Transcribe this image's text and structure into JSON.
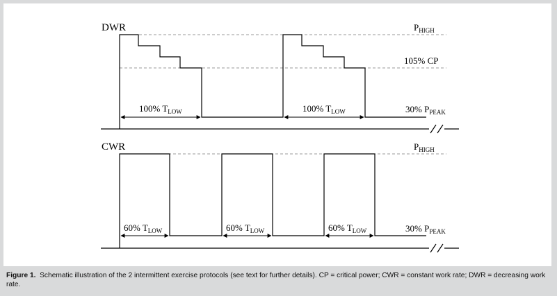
{
  "diagram": {
    "top_panel": {
      "protocol_label": "DWR",
      "high_label": {
        "main": "P",
        "sub": "HIGH"
      },
      "cp_label": "105% CP",
      "low_label": {
        "main": "30% P",
        "sub": "PEAK"
      },
      "interval_labels": [
        {
          "main": "100% T",
          "sub": "LOW"
        },
        {
          "main": "100% T",
          "sub": "LOW"
        }
      ]
    },
    "bottom_panel": {
      "protocol_label": "CWR",
      "high_label": {
        "main": "P",
        "sub": "HIGH"
      },
      "low_label": {
        "main": "30% P",
        "sub": "PEAK"
      },
      "interval_labels": [
        {
          "main": "60% T",
          "sub": "LOW"
        },
        {
          "main": "60% T",
          "sub": "LOW"
        },
        {
          "main": "60% T",
          "sub": "LOW"
        }
      ]
    }
  },
  "caption": {
    "label": "Figure 1.",
    "text": "Schematic illustration of the 2 intermittent exercise protocols (see text for further details). CP = critical power; CWR = constant work rate; DWR = decreasing work rate."
  },
  "colors": {
    "background": "#d9dadb",
    "panel": "#ffffff",
    "line": "#000000",
    "dashed": "#9a9a9a"
  }
}
